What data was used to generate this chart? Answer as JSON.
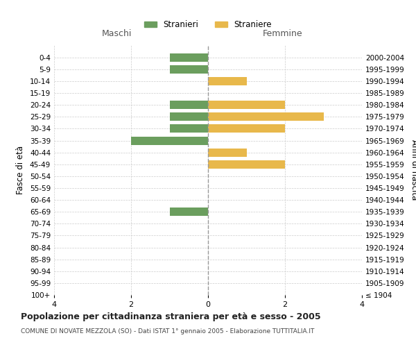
{
  "age_groups": [
    "100+",
    "95-99",
    "90-94",
    "85-89",
    "80-84",
    "75-79",
    "70-74",
    "65-69",
    "60-64",
    "55-59",
    "50-54",
    "45-49",
    "40-44",
    "35-39",
    "30-34",
    "25-29",
    "20-24",
    "15-19",
    "10-14",
    "5-9",
    "0-4"
  ],
  "birth_years": [
    "≤ 1904",
    "1905-1909",
    "1910-1914",
    "1915-1919",
    "1920-1924",
    "1925-1929",
    "1930-1934",
    "1935-1939",
    "1940-1944",
    "1945-1949",
    "1950-1954",
    "1955-1959",
    "1960-1964",
    "1965-1969",
    "1970-1974",
    "1975-1979",
    "1980-1984",
    "1985-1989",
    "1990-1994",
    "1995-1999",
    "2000-2004"
  ],
  "maschi_stranieri": [
    0,
    0,
    0,
    0,
    0,
    0,
    0,
    1,
    0,
    0,
    0,
    0,
    0,
    2,
    1,
    1,
    1,
    0,
    0,
    1,
    1
  ],
  "femmine_straniere": [
    0,
    0,
    0,
    0,
    0,
    0,
    0,
    0,
    0,
    0,
    0,
    2,
    1,
    0,
    2,
    3,
    2,
    0,
    1,
    0,
    0
  ],
  "color_maschi": "#6b9e5e",
  "color_femmine": "#e8b84b",
  "xlim": 4,
  "title": "Popolazione per cittadinanza straniera per età e sesso - 2005",
  "subtitle": "COMUNE DI NOVATE MEZZOLA (SO) - Dati ISTAT 1° gennaio 2005 - Elaborazione TUTTITALIA.IT",
  "ylabel_left": "Fasce di età",
  "ylabel_right": "Anni di nascita",
  "xlabel_maschi": "Maschi",
  "xlabel_femmine": "Femmine",
  "legend_maschi": "Stranieri",
  "legend_femmine": "Straniere",
  "background_color": "#ffffff",
  "grid_color": "#cccccc"
}
